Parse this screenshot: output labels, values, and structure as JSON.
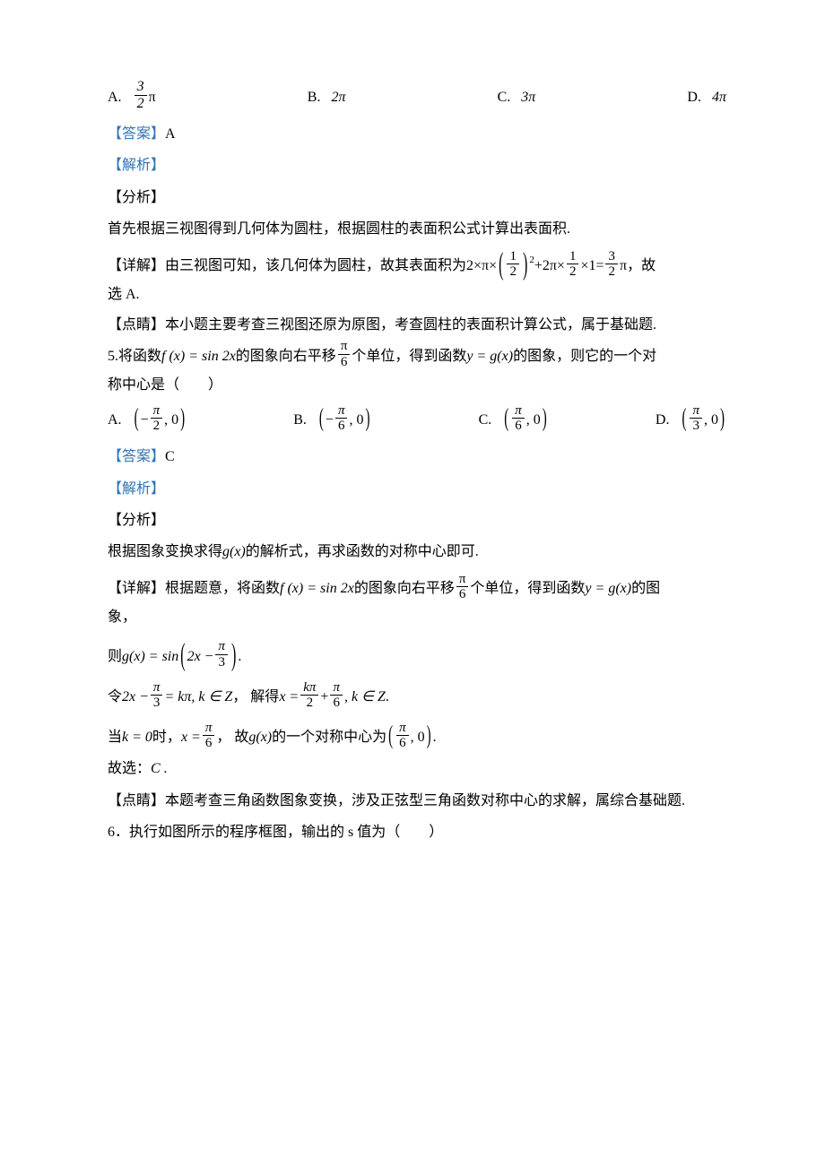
{
  "colors": {
    "text": "#000000",
    "accent": "#2e74b5",
    "background": "#ffffff"
  },
  "q4": {
    "opts": {
      "A": {
        "label": "A.",
        "num": "3",
        "den": "2",
        "tail": "π"
      },
      "B": {
        "label": "B.",
        "val": "2π"
      },
      "C": {
        "label": "C.",
        "val": "3π"
      },
      "D": {
        "label": "D.",
        "val": "4π"
      }
    },
    "ans_label": "【答案】",
    "ans_val": "A",
    "jiexi": "【解析】",
    "fenxi": "【分析】",
    "fenxi_body": "首先根据三视图得到几何体为圆柱，根据圆柱的表面积公式计算出表面积.",
    "detail_label": "【详解】",
    "detail_pre": "由三视图可知，该几何体为圆柱，故其表面积为",
    "expr": {
      "p1": "2×π×",
      "f1": {
        "num": "1",
        "den": "2"
      },
      "sq": "2",
      "p2": "+2π×",
      "f2": {
        "num": "1",
        "den": "2"
      },
      "p3": "×1=",
      "f3": {
        "num": "3",
        "den": "2"
      },
      "p4": "π"
    },
    "detail_post": "，故",
    "detail_line2": "选 A.",
    "dianjing_label": "【点睛】",
    "dianjing_body": "本小题主要考查三视图还原为原图，考查圆柱的表面积计算公式，属于基础题."
  },
  "q5": {
    "stem": {
      "num": "5.",
      "t1": " 将函数 ",
      "fx": "f (x) = sin 2x",
      "t2": " 的图象向右平移",
      "shift": {
        "num": "π",
        "den": "6"
      },
      "t3": "个单位，得到函数 ",
      "yg": "y = g(x)",
      "t4": " 的图象，则它的一个对"
    },
    "stem_line2": "称中心是（　　）",
    "opts": {
      "A": {
        "label": "A.",
        "sign": "−",
        "num": "π",
        "den": "2",
        "tail": ", 0"
      },
      "B": {
        "label": "B.",
        "sign": "−",
        "num": "π",
        "den": "6",
        "tail": ", 0"
      },
      "C": {
        "label": "C.",
        "sign": "",
        "num": "π",
        "den": "6",
        "tail": ", 0"
      },
      "D": {
        "label": "D.",
        "sign": "",
        "num": "π",
        "den": "3",
        "tail": ", 0"
      }
    },
    "ans_label": "【答案】",
    "ans_val": "C",
    "jiexi": "【解析】",
    "fenxi": "【分析】",
    "fenxi_body_pre": "根据图象变换求得",
    "fenxi_gx": " g(x) ",
    "fenxi_body_post": "的解析式，再求函数的对称中心即可.",
    "detail_label": "【详解】",
    "d1": {
      "t1": "根据题意，将函数 ",
      "fx": "f (x) = sin 2x",
      "t2": " 的图象向右平移",
      "shift": {
        "num": "π",
        "den": "6"
      },
      "t3": "个单位，得到函数 ",
      "yg": "y = g(x)",
      "t4": " 的图"
    },
    "d1_line2": "象，",
    "d2": {
      "pre": "则",
      "gx": " g(x) = sin",
      "inner_a": "2x −",
      "inner_frac": {
        "num": "π",
        "den": "3"
      },
      "post": "."
    },
    "d3": {
      "pre": "令",
      "lhs_a": "2x −",
      "lhs_frac": {
        "num": "π",
        "den": "3"
      },
      "lhs_b": "= kπ, k ∈ Z",
      "mid": " ， 解得",
      "rhs_a": "x =",
      "rhs_f1": {
        "num": "kπ",
        "den": "2"
      },
      "rhs_plus": "+",
      "rhs_f2": {
        "num": "π",
        "den": "6"
      },
      "rhs_b": ", k ∈ Z",
      "post": " ."
    },
    "d4": {
      "t1": "当",
      "k0": " k = 0 ",
      "t2": "时，",
      "xeq": " x =",
      "xfrac": {
        "num": "π",
        "den": "6"
      },
      "t3": " ， 故",
      "gx": " g(x) ",
      "t4": "的一个对称中心为",
      "ctr_frac": {
        "num": "π",
        "den": "6"
      },
      "ctr_tail": ", 0",
      "post": "."
    },
    "therefore": "故选：",
    "therefore_val": " C .",
    "dianjing_label": "【点睛】",
    "dianjing_body": "本题考查三角函数图象变换，涉及正弦型三角函数对称中心的求解，属综合基础题."
  },
  "q6": {
    "stem": "6．执行如图所示的程序框图，输出的 s 值为（　　）"
  }
}
